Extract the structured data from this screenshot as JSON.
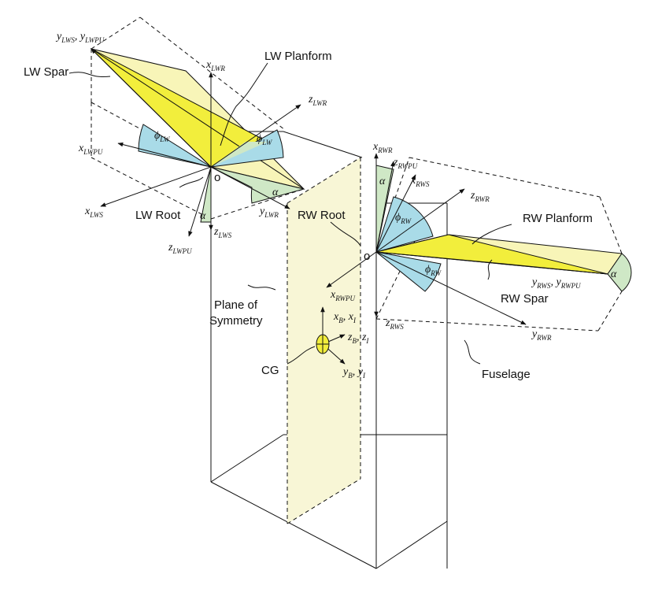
{
  "colors": {
    "wing_yellow": "#f2ee3c",
    "wing_pale": "#f8f5b8",
    "plane_pale": "#f8f6d6",
    "angle_blue": "#a9dbe8",
    "angle_green": "#cfe8c6",
    "line": "#111111"
  },
  "labels": {
    "lw_spar": "LW Spar",
    "lw_planform": "LW Planform",
    "lw_root": "LW Root",
    "rw_root": "RW Root",
    "rw_planform": "RW Planform",
    "rw_spar": "RW Spar",
    "plane_of_symmetry_1": "Plane of",
    "plane_of_symmetry_2": "Symmetry",
    "cg": "CG",
    "fuselage": "Fuselage",
    "origin_left": "o",
    "origin_right": "o"
  },
  "axes": {
    "y_lws_ylwpu": {
      "base1": "y",
      "sub1": "LWS",
      "sep": ", ",
      "base2": "y",
      "sub2": "LWPU"
    },
    "x_lwr": {
      "base": "x",
      "sub": "LWR"
    },
    "z_lwr": {
      "base": "z",
      "sub": "LWR"
    },
    "x_lwpu": {
      "base": "x",
      "sub": "LWPU"
    },
    "x_lws": {
      "base": "x",
      "sub": "LWS"
    },
    "y_lwr": {
      "base": "y",
      "sub": "LWR"
    },
    "z_lws": {
      "base": "z",
      "sub": "LWS"
    },
    "z_lwpu": {
      "base": "z",
      "sub": "LWPU"
    },
    "x_rwr": {
      "base": "x",
      "sub": "RWR"
    },
    "z_rwpu": {
      "base": "z",
      "sub": "RWPU"
    },
    "x_rws": {
      "base": "x",
      "sub": "RWS"
    },
    "z_rwr": {
      "base": "z",
      "sub": "RWR"
    },
    "x_rwpu": {
      "base": "x",
      "sub": "RWPU"
    },
    "z_rws": {
      "base": "z",
      "sub": "RWS"
    },
    "y_rwr": {
      "base": "y",
      "sub": "RWR"
    },
    "y_rws_yrwpu": {
      "base1": "y",
      "sub1": "RWS",
      "sep": ", ",
      "base2": "y",
      "sub2": "RWPU"
    },
    "xb_xi": {
      "base1": "x",
      "sub1": "B",
      "sep": ", ",
      "base2": "x",
      "sub2": "I"
    },
    "zb_zi": {
      "base1": "z",
      "sub1": "B",
      "sep": ", ",
      "base2": "z",
      "sub2": "I"
    },
    "yb_yi": {
      "base1": "y",
      "sub1": "B",
      "sep": ", ",
      "base2": "y",
      "sub2": "I"
    }
  },
  "angles": {
    "phi_lw": {
      "base": "ϕ",
      "sub": "LW"
    },
    "phi_rw": {
      "base": "ϕ",
      "sub": "RW"
    },
    "alpha": "α"
  }
}
